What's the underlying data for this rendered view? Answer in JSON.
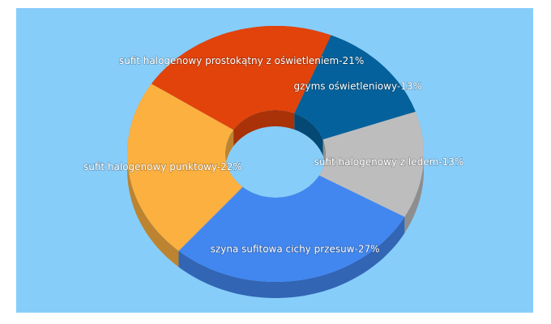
{
  "chart_data": {
    "type": "pie",
    "donut": true,
    "values": [
      13,
      13,
      27,
      22,
      21
    ],
    "value_labels": [
      "gzyms oświetleniowy-13%",
      "sufit halogenowy z ledem-13%",
      "szyna sufitowa cichy przesuw-27%",
      "sufit halogenowy punktowy-22%",
      "sufit halogenowy prostokątny z oświetleniem-21%"
    ],
    "colors": [
      "#05619b",
      "#bdbdbd",
      "#4287f0",
      "#fbb040",
      "#e1430b"
    ]
  }
}
